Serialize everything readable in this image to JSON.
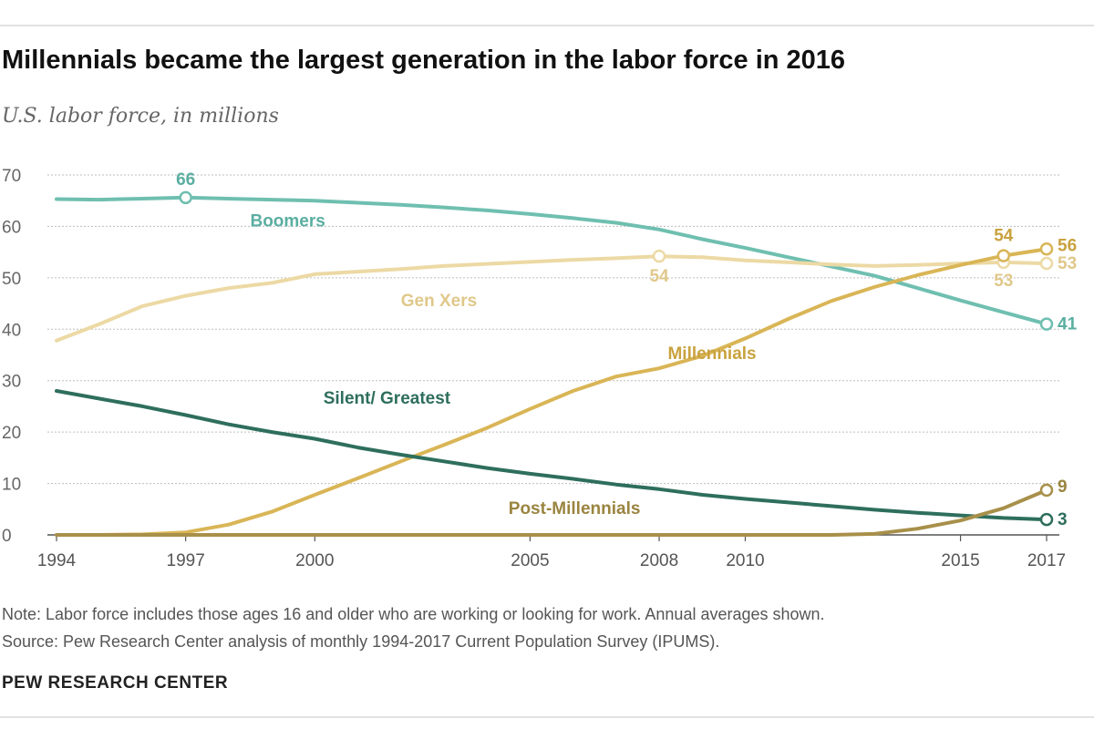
{
  "header": {
    "title": "Millennials became the largest generation in the labor force in 2016",
    "subtitle": "U.S. labor force, in millions"
  },
  "footer": {
    "note": "Note: Labor force includes those ages 16 and older who are working or looking for work. Annual averages shown.",
    "source": "Source: Pew Research Center analysis of monthly 1994-2017 Current Population Survey (IPUMS).",
    "brand": "PEW RESEARCH CENTER"
  },
  "chart_data": {
    "type": "line",
    "title": "Millennials became the largest generation in the labor force in 2016",
    "subtitle": "U.S. labor force, in millions",
    "xlabel": "",
    "ylabel": "",
    "xlim": [
      1994,
      2017
    ],
    "ylim": [
      0,
      70
    ],
    "grid": true,
    "x_ticks": [
      "1994",
      "1997",
      "2000",
      "2005",
      "2008",
      "2010",
      "2015",
      "2017"
    ],
    "y_ticks": [
      "0",
      "10",
      "20",
      "30",
      "40",
      "50",
      "60",
      "70"
    ],
    "x": [
      1994,
      1995,
      1996,
      1997,
      1998,
      1999,
      2000,
      2001,
      2002,
      2003,
      2004,
      2005,
      2006,
      2007,
      2008,
      2009,
      2010,
      2011,
      2012,
      2013,
      2014,
      2015,
      2016,
      2017
    ],
    "series": [
      {
        "name": "Boomers",
        "color": "#6fbfb0",
        "values": [
          65.3,
          65.2,
          65.4,
          65.6,
          65.4,
          65.2,
          65.0,
          64.6,
          64.2,
          63.7,
          63.1,
          62.4,
          61.6,
          60.7,
          59.4,
          57.5,
          55.8,
          54.0,
          52.2,
          50.4,
          48.0,
          45.6,
          43.3,
          41.0
        ],
        "label_text": "Boomers",
        "label_color": "#5aaea0",
        "label_at": [
          1998.5,
          60
        ],
        "points": [
          {
            "x": 1997,
            "y": 65.6,
            "text": "66",
            "dx": 0,
            "dy": -14,
            "anchor": "middle"
          },
          {
            "x": 2017,
            "y": 41.0,
            "text": "41",
            "dx": 12,
            "dy": 6,
            "anchor": "start"
          }
        ]
      },
      {
        "name": "Gen Xers",
        "color": "#ecd9a4",
        "values": [
          37.8,
          41.0,
          44.5,
          46.5,
          48.0,
          49.0,
          50.7,
          51.2,
          51.7,
          52.3,
          52.7,
          53.1,
          53.5,
          53.8,
          54.2,
          54.0,
          53.4,
          53.0,
          52.6,
          52.3,
          52.5,
          52.8,
          53.0,
          52.8
        ],
        "label_text": "Gen Xers",
        "label_color": "#e0c88a",
        "label_at": [
          2002,
          44.5
        ],
        "points": [
          {
            "x": 2008,
            "y": 54.2,
            "text": "54",
            "dx": 0,
            "dy": 28,
            "anchor": "middle"
          },
          {
            "x": 2016,
            "y": 53.0,
            "text": "53",
            "dx": 0,
            "dy": 26,
            "anchor": "middle"
          },
          {
            "x": 2017,
            "y": 52.8,
            "text": "53",
            "dx": 12,
            "dy": 6,
            "anchor": "start"
          }
        ]
      },
      {
        "name": "Millennials",
        "color": "#d9b556",
        "values": [
          0,
          0,
          0.1,
          0.5,
          2.0,
          4.5,
          7.8,
          11.0,
          14.3,
          17.5,
          20.8,
          24.5,
          28.0,
          30.8,
          32.4,
          34.8,
          38.2,
          42.0,
          45.5,
          48.2,
          50.5,
          52.5,
          54.3,
          55.6
        ],
        "label_text": "Millennials",
        "label_color": "#c9a23f",
        "label_at": [
          2008.2,
          34.2
        ],
        "points": [
          {
            "x": 2016,
            "y": 54.3,
            "text": "54",
            "dx": 0,
            "dy": -16,
            "anchor": "middle"
          },
          {
            "x": 2017,
            "y": 55.6,
            "text": "56",
            "dx": 12,
            "dy": 2,
            "anchor": "start"
          }
        ]
      },
      {
        "name": "Silent/Greatest",
        "color": "#2e6e5d",
        "values": [
          28.0,
          26.5,
          25.0,
          23.3,
          21.5,
          20.0,
          18.7,
          17.0,
          15.6,
          14.3,
          13.0,
          11.9,
          10.9,
          9.8,
          8.9,
          7.8,
          7.0,
          6.3,
          5.6,
          4.9,
          4.3,
          3.8,
          3.3,
          3.0
        ],
        "label_text": "Silent/ Greatest",
        "label_color": "#2e6e5d",
        "label_at": [
          2000.2,
          25.5
        ],
        "points": [
          {
            "x": 2017,
            "y": 3.0,
            "text": "3",
            "dx": 12,
            "dy": 6,
            "anchor": "start"
          }
        ]
      },
      {
        "name": "Post-Millennials",
        "color": "#a8904a",
        "values": [
          0,
          0,
          0,
          0,
          0,
          0,
          0,
          0,
          0,
          0,
          0,
          0,
          0,
          0,
          0,
          0,
          0,
          0,
          0,
          0.2,
          1.2,
          2.8,
          5.2,
          8.7
        ],
        "label_text": "Post-Millennials",
        "label_color": "#9a8440",
        "label_at": [
          2004.5,
          4.1
        ],
        "points": [
          {
            "x": 2017,
            "y": 8.7,
            "text": "9",
            "dx": 12,
            "dy": 2,
            "anchor": "start"
          }
        ]
      }
    ]
  }
}
